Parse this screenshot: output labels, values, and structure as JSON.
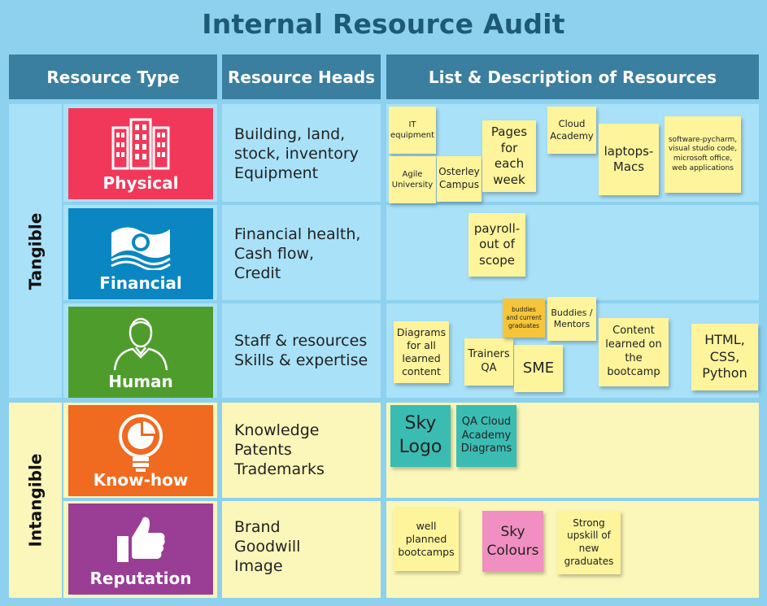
{
  "title": "Internal Resource Audit",
  "headers": {
    "resource_type": "Resource Type",
    "resource_heads": "Resource Heads",
    "list_description": "List & Description of Resources"
  },
  "groups": {
    "tangible": "Tangible",
    "intangible": "Intangible"
  },
  "rows": [
    {
      "type_label": "Physical",
      "icon": "building-icon",
      "tile_color": "#f2385a",
      "heads": [
        "Building, land,",
        "stock, inventory",
        "Equipment"
      ],
      "notes": [
        "IT equipment",
        "Agile University",
        "Osterley Campus",
        "Pages for each week",
        "Cloud Academy",
        "laptops-Macs",
        "software-pycharm, visual studio code, microsoft office, web applications"
      ]
    },
    {
      "type_label": "Financial",
      "icon": "money-icon",
      "tile_color": "#0a87c2",
      "heads": [
        "Financial health,",
        "Cash flow,",
        "Credit"
      ],
      "notes": [
        "payroll-out of scope"
      ]
    },
    {
      "type_label": "Human",
      "icon": "person-icon",
      "tile_color": "#4e9d2c",
      "heads": [
        "Staff & resources",
        "Skills & expertise"
      ],
      "notes": [
        "Diagrams for all learned content",
        "Trainers QA",
        "buddies and current graduates",
        "Buddies / Mentors",
        "SME",
        "Content learned on the bootcamp",
        "HTML, CSS, Python"
      ]
    },
    {
      "type_label": "Know-how",
      "icon": "lightbulb-icon",
      "tile_color": "#f06a1f",
      "heads": [
        "Knowledge",
        "Patents",
        "Trademarks"
      ],
      "notes": [
        "Sky Logo",
        "QA Cloud Academy Diagrams"
      ]
    },
    {
      "type_label": "Reputation",
      "icon": "thumbs-up-icon",
      "tile_color": "#9a3d95",
      "heads": [
        "Brand",
        "Goodwill",
        "Image"
      ],
      "notes": [
        "well planned bootcamps",
        "Sky Colours",
        "Strong upskill of new graduates"
      ]
    }
  ],
  "colors": {
    "background": "#8dd1ee",
    "header": "#3a7ea0",
    "tangible_row": "#a9e1f8",
    "intangible_row": "#fbf6b9",
    "sticky_yellow": "#fdf49c",
    "sticky_orange": "#f7c53a",
    "sticky_teal": "#3bbcb3",
    "sticky_pink": "#f28fc2"
  }
}
